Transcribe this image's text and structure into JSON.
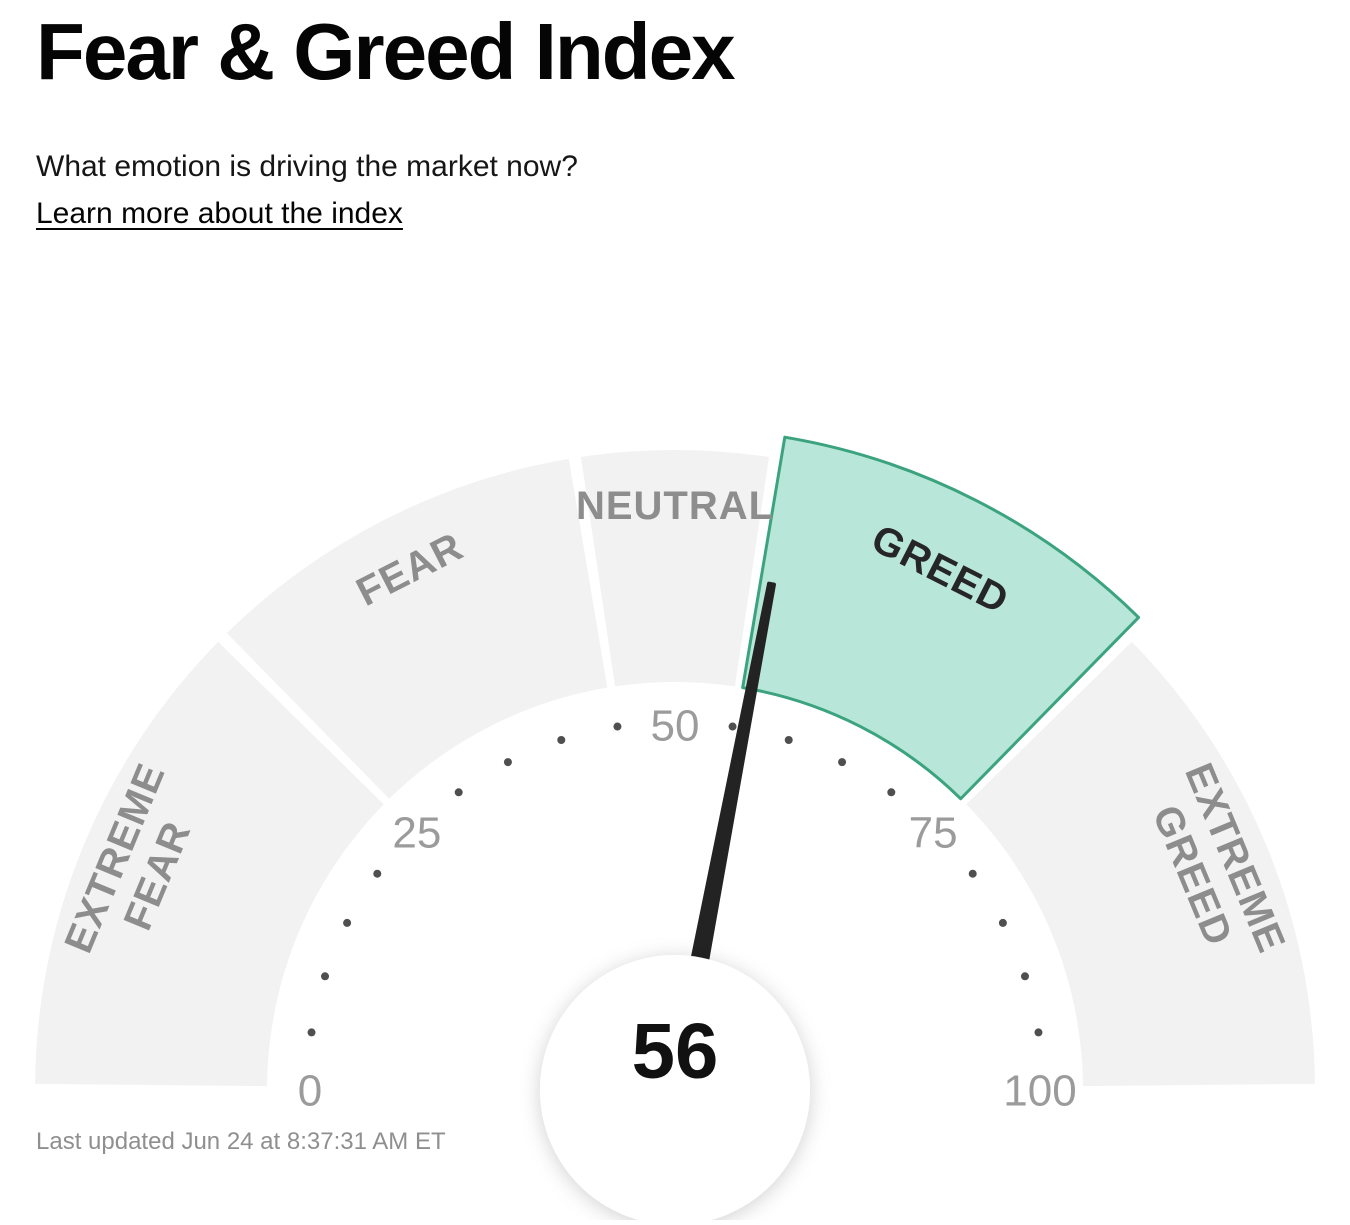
{
  "page": {
    "title": "Fear & Greed Index",
    "subtitle": "What emotion is driving the market now?",
    "link_label": "Learn more about the index",
    "last_updated": "Last updated Jun 24 at 8:37:31 AM ET"
  },
  "chart_data": {
    "type": "gauge",
    "value": 56,
    "value_label": "56",
    "min": 0,
    "max": 100,
    "active_segment": "GREED",
    "segments": [
      {
        "label": "EXTREME FEAR",
        "from": 0,
        "to": 25,
        "active": false
      },
      {
        "label": "FEAR",
        "from": 25,
        "to": 45,
        "active": false
      },
      {
        "label": "NEUTRAL",
        "from": 45,
        "to": 55,
        "active": false
      },
      {
        "label": "GREED",
        "from": 55,
        "to": 75,
        "active": true
      },
      {
        "label": "EXTREME GREED",
        "from": 75,
        "to": 100,
        "active": false
      }
    ],
    "tick_labels": [
      {
        "value": 0,
        "label": "0"
      },
      {
        "value": 25,
        "label": "25"
      },
      {
        "value": 50,
        "label": "50"
      },
      {
        "value": 75,
        "label": "75"
      },
      {
        "value": 100,
        "label": "100"
      }
    ],
    "minor_tick_step": 5,
    "colors": {
      "segment_inactive": "#f2f2f2",
      "segment_active_fill": "#b8e6d9",
      "segment_active_stroke": "#3ba37e",
      "label_inactive": "#8d8d8d",
      "label_active": "#262626",
      "tick_label": "#9b9b9b",
      "dot": "#4f4f4f",
      "needle": "#232323",
      "value_text": "#111111"
    }
  }
}
